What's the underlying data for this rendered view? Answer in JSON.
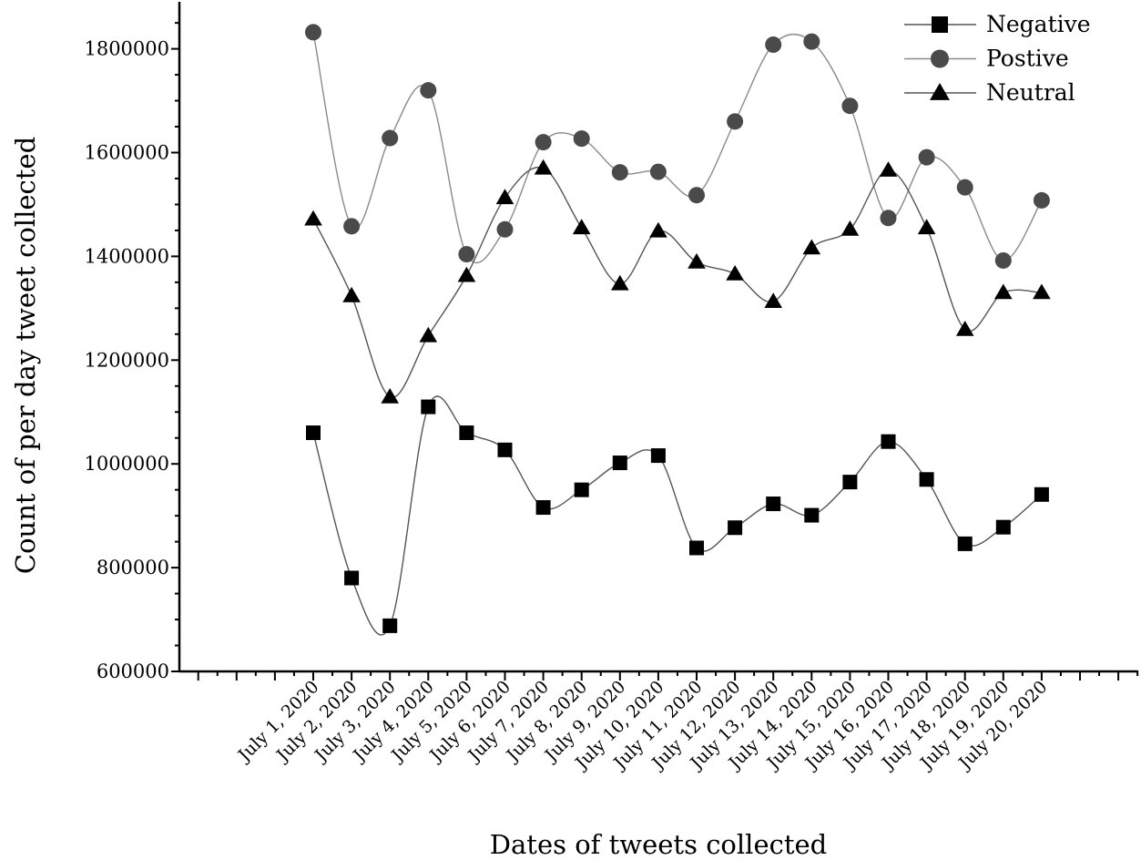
{
  "chart_data": {
    "type": "line",
    "xlabel": "Dates of tweets collected",
    "ylabel": "Count of per day tweet collected",
    "categories": [
      "July 1, 2020",
      "July 2, 2020",
      "July 3, 2020",
      "July 4, 2020",
      "July 5, 2020",
      "July 6, 2020",
      "July 7, 2020",
      "July 8, 2020",
      "July 9, 2020",
      "July 10, 2020",
      "July 11, 2020",
      "July 12, 2020",
      "July 13, 2020",
      "July 14, 2020",
      "July 15, 2020",
      "July 16, 2020",
      "July 17, 2020",
      "July 18, 2020",
      "July 19, 2020",
      "July 20, 2020"
    ],
    "ylim": [
      600000,
      1880000
    ],
    "yticks": [
      600000,
      800000,
      1000000,
      1200000,
      1400000,
      1600000,
      1800000
    ],
    "ytick_labels": [
      "600000",
      "800000",
      "1000000",
      "1200000",
      "1400000",
      "1600000",
      "1800000"
    ],
    "legend_position": "top-right",
    "grid": false,
    "series": [
      {
        "name": "Negative",
        "marker": "square",
        "marker_color": "#000000",
        "line_color": "#555555",
        "values": [
          1060000,
          780000,
          688000,
          1110000,
          1060000,
          1027000,
          916000,
          950000,
          1002000,
          1016000,
          838000,
          877000,
          923000,
          901000,
          965000,
          1043000,
          970000,
          846000,
          878000,
          941000
        ]
      },
      {
        "name": "Postive",
        "marker": "circle",
        "marker_color": "#4a4a4a",
        "line_color": "#8a8a8a",
        "values": [
          1832000,
          1458000,
          1628000,
          1720000,
          1404000,
          1452000,
          1620000,
          1627000,
          1562000,
          1563000,
          1518000,
          1660000,
          1808000,
          1814000,
          1690000,
          1474000,
          1591000,
          1533000,
          1392000,
          1508000
        ]
      },
      {
        "name": "Neutral",
        "marker": "triangle",
        "marker_color": "#000000",
        "line_color": "#555555",
        "values": [
          1472000,
          1324000,
          1129000,
          1247000,
          1363000,
          1513000,
          1570000,
          1455000,
          1347000,
          1449000,
          1389000,
          1366000,
          1313000,
          1416000,
          1452000,
          1566000,
          1455000,
          1259000,
          1330000,
          1330000
        ]
      }
    ]
  }
}
